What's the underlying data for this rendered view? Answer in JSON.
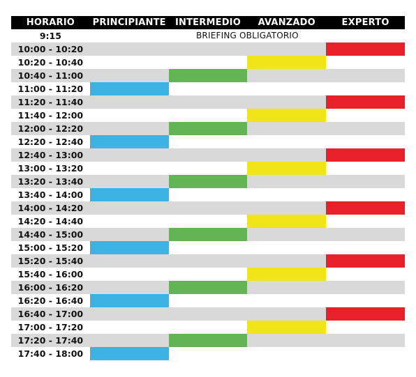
{
  "header": {
    "columns": [
      "HORARIO",
      "PRINCIPIANTE",
      "INTERMEDIO",
      "AVANZADO",
      "EXPERTO"
    ]
  },
  "briefing": {
    "time": "9:15",
    "label": "BRIEFING OBLIGATORIO"
  },
  "colors": {
    "header_bg": "#000000",
    "row_shade": "#d9d9d9",
    "principiante": "#3db3e3",
    "intermedio": "#62b454",
    "avanzado": "#f0e518",
    "experto": "#e8202a"
  },
  "rows": [
    {
      "time": "10:00 - 10:20",
      "level": 3
    },
    {
      "time": "10:20 - 10:40",
      "level": 2
    },
    {
      "time": "10:40 - 11:00",
      "level": 1
    },
    {
      "time": "11:00 - 11:20",
      "level": 0
    },
    {
      "time": "11:20 - 11:40",
      "level": 3
    },
    {
      "time": "11:40 - 12:00",
      "level": 2
    },
    {
      "time": "12:00 - 12:20",
      "level": 1
    },
    {
      "time": "12:20 - 12:40",
      "level": 0
    },
    {
      "time": "12:40 - 13:00",
      "level": 3
    },
    {
      "time": "13:00 - 13:20",
      "level": 2
    },
    {
      "time": "13:20 - 13:40",
      "level": 1
    },
    {
      "time": "13:40 - 14:00",
      "level": 0
    },
    {
      "time": "14:00 - 14:20",
      "level": 3
    },
    {
      "time": "14:20 - 14:40",
      "level": 2
    },
    {
      "time": "14:40 - 15:00",
      "level": 1
    },
    {
      "time": "15:00 - 15:20",
      "level": 0
    },
    {
      "time": "15:20 - 15:40",
      "level": 3
    },
    {
      "time": "15:40 - 16:00",
      "level": 2
    },
    {
      "time": "16:00 - 16:20",
      "level": 1
    },
    {
      "time": "16:20 - 16:40",
      "level": 0
    },
    {
      "time": "16:40 - 17:00",
      "level": 3
    },
    {
      "time": "17:00 - 17:20",
      "level": 2
    },
    {
      "time": "17:20 - 17:40",
      "level": 1
    },
    {
      "time": "17:40 - 18:00",
      "level": 0
    }
  ]
}
